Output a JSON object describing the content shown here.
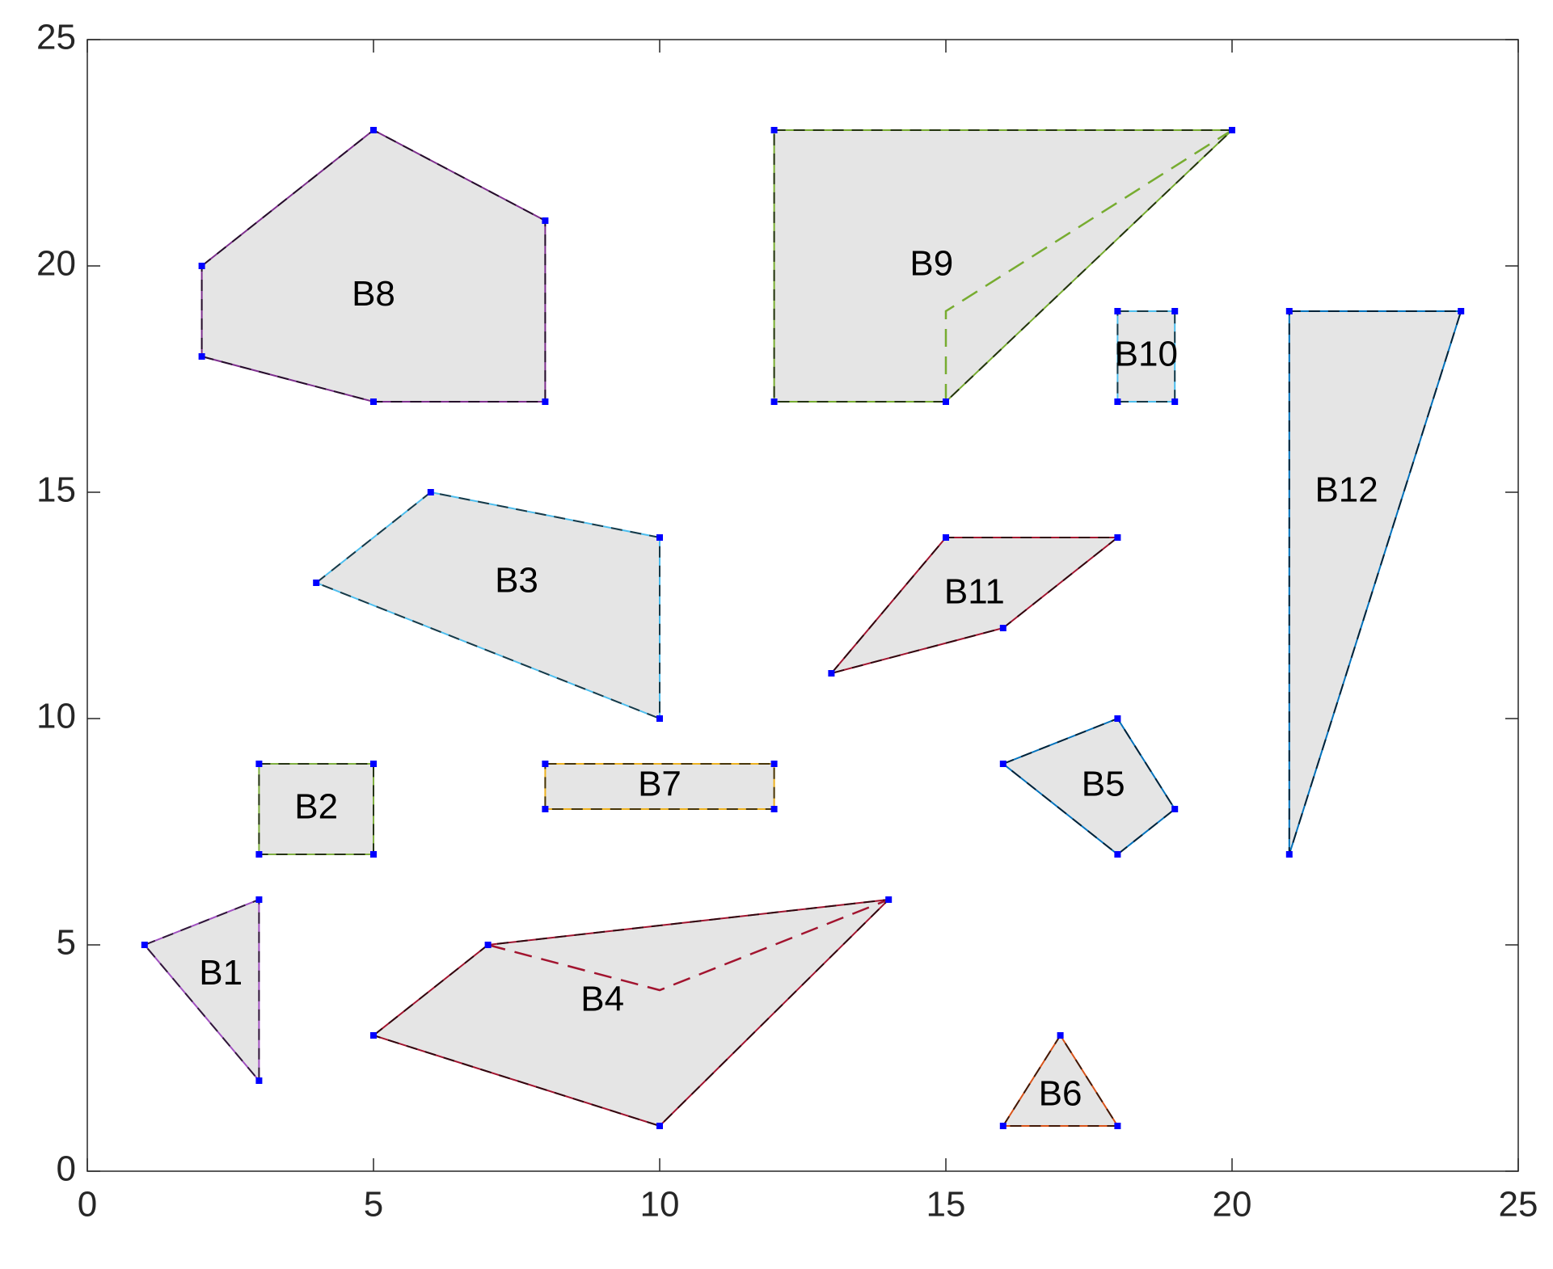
{
  "chart_data": {
    "type": "polygon",
    "xlim": [
      0,
      25
    ],
    "ylim": [
      0,
      25
    ],
    "xticks": [
      0,
      5,
      10,
      15,
      20,
      25
    ],
    "yticks": [
      0,
      5,
      10,
      15,
      20,
      25
    ],
    "fill_color": "#e5e5e5",
    "vertex_color": "#0000ff",
    "shapes": [
      {
        "name": "B1",
        "color": "#a050c0",
        "x": [
          1,
          3,
          3
        ],
        "y": [
          5,
          6,
          2
        ]
      },
      {
        "name": "B2",
        "color": "#80b040",
        "x": [
          3,
          5,
          5,
          3
        ],
        "y": [
          9,
          9,
          7,
          7
        ]
      },
      {
        "name": "B3",
        "color": "#4dbeee",
        "x": [
          4,
          6,
          10,
          10
        ],
        "y": [
          13,
          15,
          14,
          10
        ]
      },
      {
        "name": "B4",
        "color": "#a2142f",
        "x": [
          5,
          7,
          14,
          10
        ],
        "y": [
          3,
          5,
          6,
          1
        ],
        "cut_x": [
          7,
          10,
          14
        ],
        "cut_y": [
          5,
          4,
          6
        ]
      },
      {
        "name": "B5",
        "color": "#0072bd",
        "x": [
          16,
          18,
          19,
          18
        ],
        "y": [
          9,
          10,
          8,
          7
        ]
      },
      {
        "name": "B6",
        "color": "#d95319",
        "x": [
          16,
          17,
          18
        ],
        "y": [
          1,
          3,
          1
        ]
      },
      {
        "name": "B7",
        "color": "#edb120",
        "x": [
          8,
          12,
          12,
          8
        ],
        "y": [
          9,
          9,
          8,
          8
        ]
      },
      {
        "name": "B8",
        "color": "#7e2f8e",
        "x": [
          2,
          5,
          8,
          8,
          5,
          2
        ],
        "y": [
          20,
          23,
          21,
          17,
          17,
          18
        ]
      },
      {
        "name": "B9",
        "color": "#77ac30",
        "x": [
          12,
          20,
          15,
          12
        ],
        "y": [
          23,
          23,
          17,
          17
        ],
        "cut_x": [
          15,
          15,
          20
        ],
        "cut_y": [
          17,
          19,
          23
        ]
      },
      {
        "name": "B10",
        "color": "#4dbeee",
        "x": [
          18,
          19,
          19,
          18
        ],
        "y": [
          19,
          19,
          17,
          17
        ]
      },
      {
        "name": "B11",
        "color": "#a2142f",
        "x": [
          13,
          15,
          18,
          16
        ],
        "y": [
          11,
          14,
          14,
          12
        ]
      },
      {
        "name": "B12",
        "color": "#0072bd",
        "x": [
          21,
          24,
          21
        ],
        "y": [
          19,
          19,
          7
        ]
      }
    ]
  }
}
